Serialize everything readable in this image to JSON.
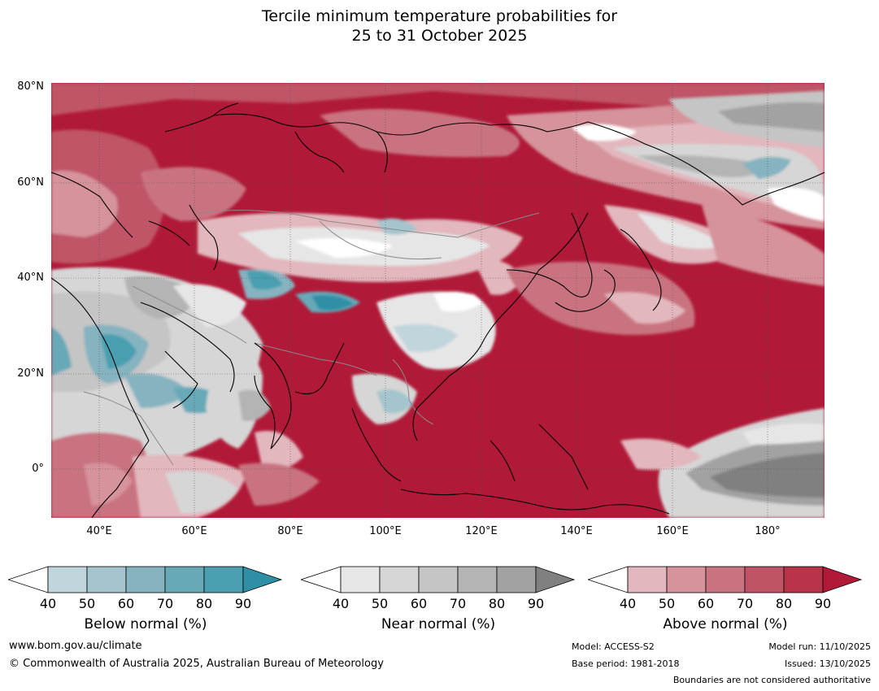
{
  "title": {
    "line1": "Tercile minimum temperature probabilities for",
    "line2": "25 to 31 October 2025"
  },
  "map": {
    "lat_labels": [
      "80°N",
      "60°N",
      "40°N",
      "20°N",
      "0°"
    ],
    "lon_labels": [
      "40°E",
      "60°E",
      "80°E",
      "100°E",
      "120°E",
      "140°E",
      "160°E",
      "180°"
    ],
    "lat_range": [
      -10,
      80
    ],
    "lon_range": [
      30,
      192
    ]
  },
  "legends": {
    "below": {
      "title": "Below normal (%)",
      "ticks": [
        "40",
        "50",
        "60",
        "70",
        "80",
        "90"
      ],
      "colors": [
        "#c0d5dc",
        "#a4c5cd",
        "#86b3c0",
        "#68a9b8",
        "#4a9fb0",
        "#2e8fa5"
      ]
    },
    "near": {
      "title": "Near normal (%)",
      "ticks": [
        "40",
        "50",
        "60",
        "70",
        "80",
        "90"
      ],
      "colors": [
        "#e6e6e6",
        "#d6d6d6",
        "#c5c5c5",
        "#b4b4b4",
        "#a2a2a2",
        "#808080"
      ]
    },
    "above": {
      "title": "Above normal (%)",
      "ticks": [
        "40",
        "50",
        "60",
        "70",
        "80",
        "90"
      ],
      "colors": [
        "#e2b7bd",
        "#d6939b",
        "#c97380",
        "#c05467",
        "#b7344a",
        "#b01a38"
      ]
    }
  },
  "footer": {
    "website": "www.bom.gov.au/climate",
    "copyright": "© Commonwealth of Australia 2025, Australian Bureau of Meteorology",
    "model": "Model: ACCESS-S2",
    "base_period": "Base period: 1981-2018",
    "model_run": "Model run: 11/10/2025",
    "issued": "Issued: 13/10/2025",
    "boundaries": "Boundaries are not considered authoritative"
  }
}
